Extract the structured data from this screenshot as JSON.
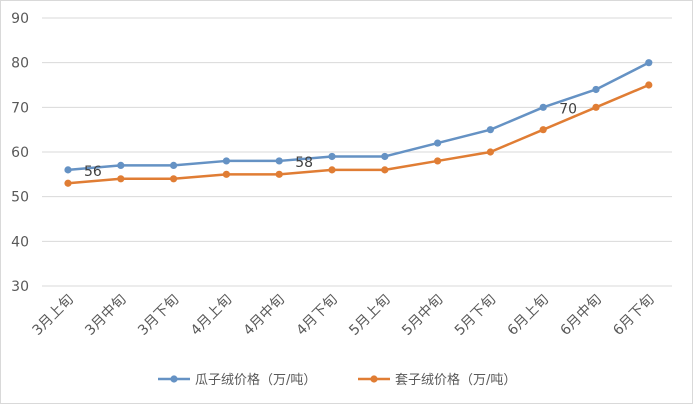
{
  "chart_data": {
    "type": "line",
    "categories": [
      "3月上旬",
      "3月中旬",
      "3月下旬",
      "4月上旬",
      "4月中旬",
      "4月下旬",
      "5月上旬",
      "5月中旬",
      "5月下旬",
      "6月上旬",
      "6月中旬",
      "6月下旬"
    ],
    "series": [
      {
        "name": "瓜子绒价格（万/吨）",
        "color": "#6592c4",
        "values": [
          56,
          57,
          57,
          58,
          58,
          59,
          59,
          62,
          65,
          70,
          74,
          80
        ]
      },
      {
        "name": "套子绒价格（万/吨）",
        "color": "#e07d34",
        "values": [
          53,
          54,
          54,
          55,
          55,
          56,
          56,
          58,
          60,
          65,
          70,
          75
        ]
      }
    ],
    "data_labels": [
      {
        "series": 0,
        "index": 0,
        "text": "56"
      },
      {
        "series": 0,
        "index": 4,
        "text": "58"
      },
      {
        "series": 0,
        "index": 9,
        "text": "70"
      }
    ],
    "ylim": [
      30,
      90
    ],
    "yticks": [
      30,
      40,
      50,
      60,
      70,
      80,
      90
    ],
    "grid": true,
    "legend_position": "bottom",
    "gridline_color": "#d9d9d9"
  }
}
